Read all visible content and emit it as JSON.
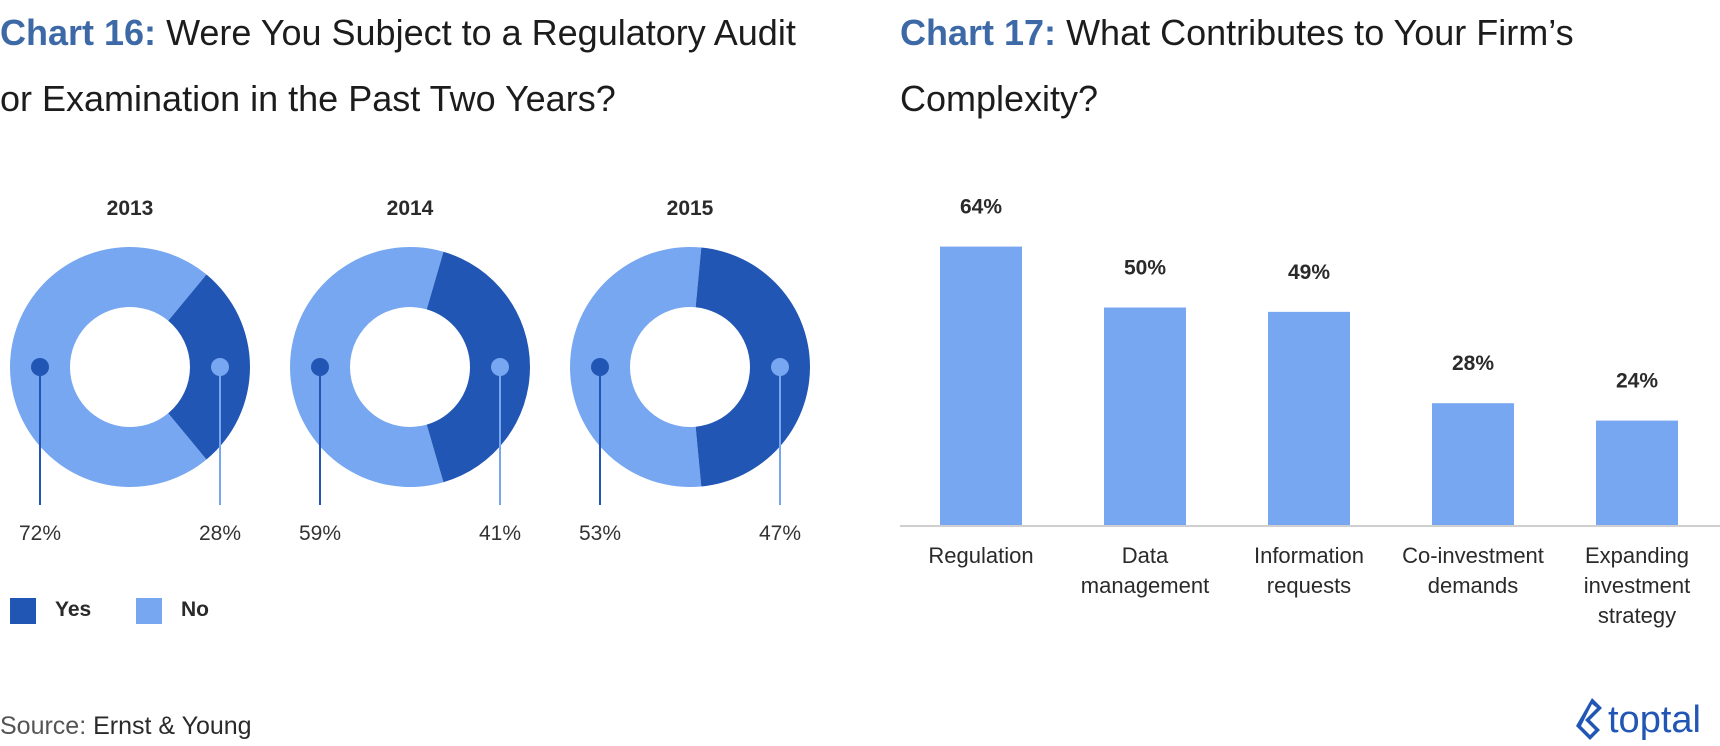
{
  "chart16_title": {
    "prefix": "Chart 16:",
    "text": "Were You Subject to a Regulatory Audit or Examination in the Past Two Years?"
  },
  "chart17_title": {
    "prefix": "Chart 17:",
    "text": "What Contributes to Your Firm’s Complexity?"
  },
  "colors": {
    "yes": "#2156b5",
    "no": "#77a7f0",
    "title_accent": "#3d6aa6",
    "axis": "#cfcfcf"
  },
  "chart_data": [
    {
      "type": "pie",
      "variant": "donut",
      "legend_placement": "bottom-left",
      "legend": [
        {
          "name": "Yes",
          "color": "#2156b5"
        },
        {
          "name": "No",
          "color": "#77a7f0"
        }
      ],
      "charts": [
        {
          "title": "2013",
          "slices": [
            {
              "name": "Yes",
              "value": 28,
              "label": "28%"
            },
            {
              "name": "No",
              "value": 72,
              "label": "72%"
            }
          ]
        },
        {
          "title": "2014",
          "slices": [
            {
              "name": "Yes",
              "value": 41,
              "label": "41%"
            },
            {
              "name": "No",
              "value": 59,
              "label": "59%"
            }
          ]
        },
        {
          "title": "2015",
          "slices": [
            {
              "name": "Yes",
              "value": 47,
              "label": "47%"
            },
            {
              "name": "No",
              "value": 53,
              "label": "53%"
            }
          ]
        }
      ]
    },
    {
      "type": "bar",
      "categories": [
        [
          "Regulation"
        ],
        [
          "Data",
          "management"
        ],
        [
          "Information",
          "requests"
        ],
        [
          "Co-investment",
          "demands"
        ],
        [
          "Expanding",
          "investment",
          "strategy"
        ]
      ],
      "values": [
        64,
        50,
        49,
        28,
        24
      ],
      "value_labels": [
        "64%",
        "50%",
        "49%",
        "28%",
        "24%"
      ],
      "ylim": [
        0,
        100
      ],
      "grid": false,
      "bar_color": "#77a7f0"
    }
  ],
  "source": {
    "label": "Source:",
    "value": "Ernst & Young"
  },
  "logo": {
    "text": "toptal"
  }
}
